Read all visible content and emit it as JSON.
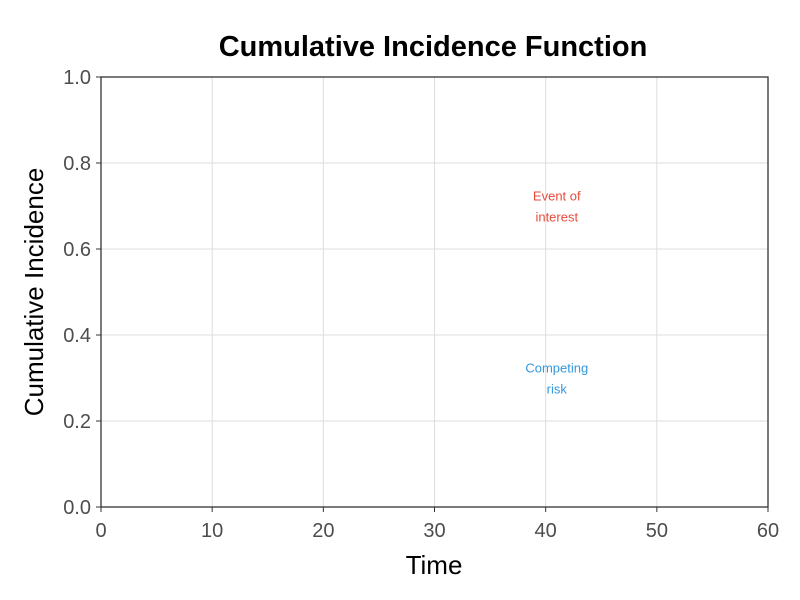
{
  "chart_data": {
    "type": "line",
    "title": "Cumulative Incidence Function",
    "xlabel": "Time",
    "ylabel": "Cumulative Incidence",
    "xlim": [
      0,
      60
    ],
    "ylim": [
      0,
      1
    ],
    "x_ticks": [
      "0",
      "10",
      "20",
      "30",
      "40",
      "50",
      "60"
    ],
    "y_ticks": [
      "0.0",
      "0.2",
      "0.4",
      "0.6",
      "0.8",
      "1.0"
    ],
    "grid": true,
    "series": [],
    "annotations": [
      {
        "lines": [
          "Event of",
          "interest"
        ],
        "x": 41,
        "y": 0.69,
        "color": "#e74c3c"
      },
      {
        "lines": [
          "Competing",
          "risk"
        ],
        "x": 41,
        "y": 0.29,
        "color": "#3498db"
      }
    ],
    "colors": {
      "grid": "#dddddd",
      "axis": "#333333",
      "tick_text": "#4d4d4d"
    }
  }
}
